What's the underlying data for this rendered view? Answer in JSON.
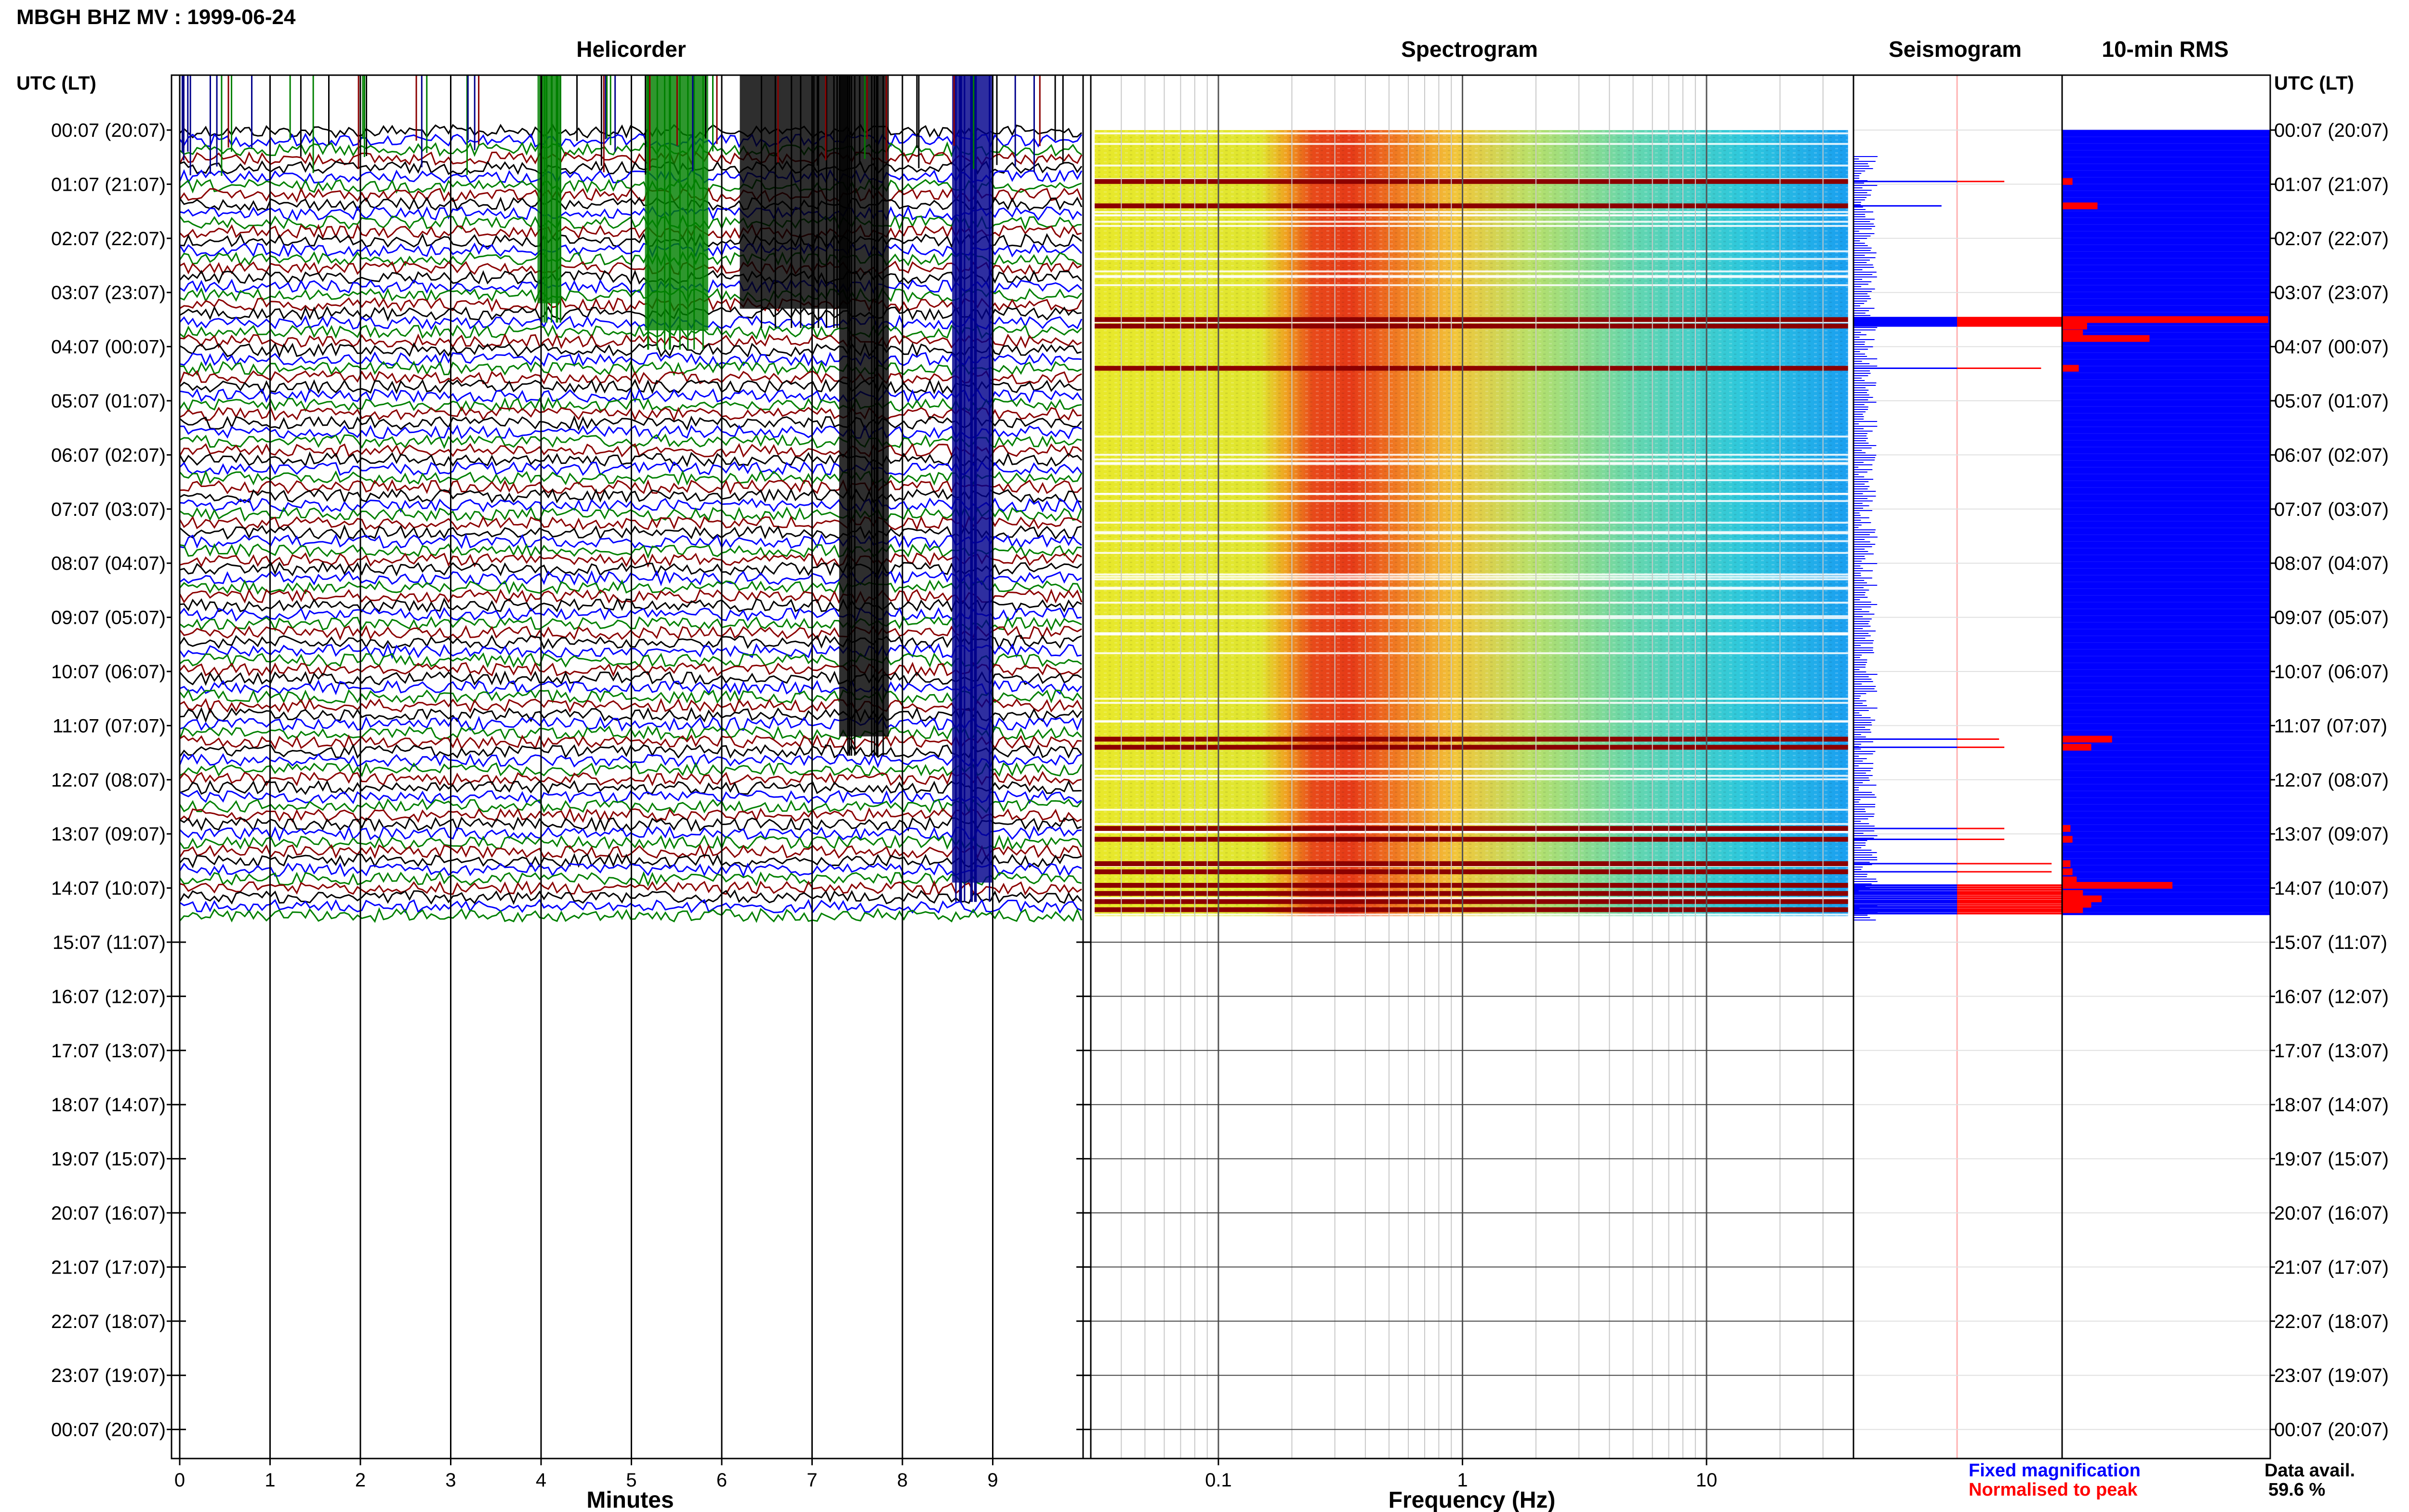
{
  "header": {
    "title": "MBGH BHZ MV : 1999-06-24"
  },
  "panels": {
    "helicorder": "Helicorder",
    "spectrogram": "Spectrogram",
    "seismogram": "Seismogram",
    "rms": "10-min RMS"
  },
  "axis": {
    "left_header": "UTC (LT)",
    "right_header": "UTC (LT)",
    "time_labels": [
      "00:07 (20:07)",
      "01:07 (21:07)",
      "02:07 (22:07)",
      "03:07 (23:07)",
      "04:07 (00:07)",
      "05:07 (01:07)",
      "06:07 (02:07)",
      "07:07 (03:07)",
      "08:07 (04:07)",
      "09:07 (05:07)",
      "10:07 (06:07)",
      "11:07 (07:07)",
      "12:07 (08:07)",
      "13:07 (09:07)",
      "14:07 (10:07)",
      "15:07 (11:07)",
      "16:07 (12:07)",
      "17:07 (13:07)",
      "18:07 (14:07)",
      "19:07 (15:07)",
      "20:07 (16:07)",
      "21:07 (17:07)",
      "22:07 (18:07)",
      "23:07 (19:07)",
      "00:07 (20:07)"
    ],
    "minutes_label": "Minutes",
    "minutes_ticks": [
      "0",
      "1",
      "2",
      "3",
      "4",
      "5",
      "6",
      "7",
      "8",
      "9"
    ],
    "frequency_label": "Frequency (Hz)",
    "frequency_ticks": [
      "0.1",
      "1",
      "10"
    ]
  },
  "legend": {
    "fixed": "Fixed magnification",
    "normalised": "Normalised to peak",
    "fixed_color": "#0000ff",
    "normalised_color": "#ff0000"
  },
  "availability": {
    "label": "Data avail.",
    "value": "59.6 %"
  },
  "colors": {
    "trace_cycle": [
      "#000000",
      "#0000ff",
      "#008000",
      "#8b0000"
    ]
  },
  "chart_data": {
    "type": "heatmap",
    "data_hours": 14.5,
    "helicorder": {
      "xlim": [
        0,
        10
      ],
      "rows_per_hour": 6
    },
    "spectrogram": {
      "xscale": "log",
      "xlim": [
        0.03,
        40
      ],
      "data_fmax": 38,
      "peak_band_hz": [
        0.22,
        0.5
      ]
    },
    "rms_spikes": [
      {
        "hour": 0.95,
        "level": 0.05
      },
      {
        "hour": 1.4,
        "level": 0.17
      },
      {
        "hour": 3.5,
        "level": 0.99
      },
      {
        "hour": 3.62,
        "level": 0.12
      },
      {
        "hour": 3.75,
        "level": 0.1
      },
      {
        "hour": 3.85,
        "level": 0.42
      },
      {
        "hour": 4.4,
        "level": 0.08
      },
      {
        "hour": 11.25,
        "level": 0.24
      },
      {
        "hour": 11.4,
        "level": 0.14
      },
      {
        "hour": 12.9,
        "level": 0.04
      },
      {
        "hour": 13.1,
        "level": 0.05
      },
      {
        "hour": 13.55,
        "level": 0.04
      },
      {
        "hour": 13.7,
        "level": 0.05
      },
      {
        "hour": 13.85,
        "level": 0.07
      },
      {
        "hour": 13.95,
        "level": 0.53
      },
      {
        "hour": 14.1,
        "level": 0.1
      },
      {
        "hour": 14.2,
        "level": 0.19
      },
      {
        "hour": 14.3,
        "level": 0.14
      },
      {
        "hour": 14.4,
        "level": 0.1
      }
    ],
    "seismogram_events": [
      {
        "hour": 0.95,
        "fixed": 1.0,
        "norm": 0.45
      },
      {
        "hour": 1.4,
        "fixed": 0.85,
        "norm": 0.0
      },
      {
        "hour": 3.5,
        "fixed": 1.0,
        "norm": 1.0
      },
      {
        "hour": 3.62,
        "fixed": 1.0,
        "norm": 1.0
      },
      {
        "hour": 4.4,
        "fixed": 1.0,
        "norm": 0.8
      },
      {
        "hour": 11.25,
        "fixed": 1.0,
        "norm": 0.4
      },
      {
        "hour": 11.4,
        "fixed": 1.0,
        "norm": 0.45
      },
      {
        "hour": 12.9,
        "fixed": 1.0,
        "norm": 0.45
      },
      {
        "hour": 13.1,
        "fixed": 1.0,
        "norm": 0.45
      },
      {
        "hour": 13.55,
        "fixed": 1.0,
        "norm": 0.9
      },
      {
        "hour": 13.7,
        "fixed": 1.0,
        "norm": 0.9
      },
      {
        "hour": 13.95,
        "fixed": 1.0,
        "norm": 1.0
      },
      {
        "hour": 14.1,
        "fixed": 1.0,
        "norm": 1.0
      },
      {
        "hour": 14.25,
        "fixed": 1.0,
        "norm": 1.0
      },
      {
        "hour": 14.4,
        "fixed": 1.0,
        "norm": 1.0
      }
    ]
  }
}
